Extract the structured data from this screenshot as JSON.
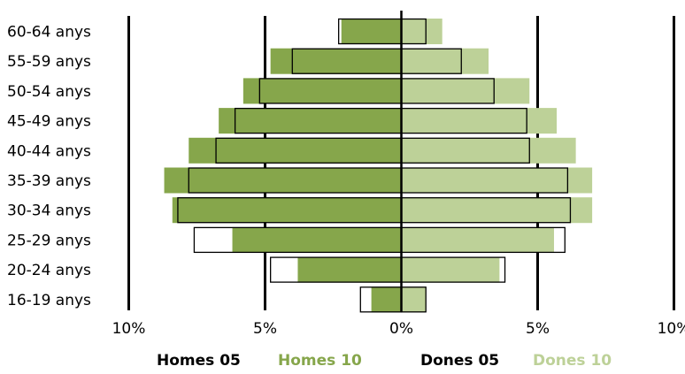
{
  "chart_data": {
    "type": "bar",
    "orientation": "horizontal",
    "layout": "population-pyramid",
    "categories": [
      "60-64 anys",
      "55-59 anys",
      "50-54 anys",
      "45-49 anys",
      "40-44 anys",
      "35-39 anys",
      "30-34 anys",
      "25-29 anys",
      "20-24 anys",
      "16-19 anys"
    ],
    "series": [
      {
        "name": "Homes 05",
        "side": "left",
        "style": "outline",
        "color": "#000000",
        "values": [
          2.3,
          4.0,
          5.2,
          6.1,
          6.8,
          7.8,
          8.2,
          7.6,
          4.8,
          1.5
        ]
      },
      {
        "name": "Homes 10",
        "side": "left",
        "style": "filled",
        "color": "#86a64b",
        "values": [
          2.2,
          4.8,
          5.8,
          6.7,
          7.8,
          8.7,
          8.4,
          6.2,
          3.8,
          1.1
        ]
      },
      {
        "name": "Dones 05",
        "side": "right",
        "style": "outline",
        "color": "#000000",
        "values": [
          0.9,
          2.2,
          3.4,
          4.6,
          4.7,
          6.1,
          6.2,
          6.0,
          3.8,
          0.9
        ]
      },
      {
        "name": "Dones 10",
        "side": "right",
        "style": "filled",
        "color": "#bdd198",
        "values": [
          1.5,
          3.2,
          4.7,
          5.7,
          6.4,
          7.0,
          7.0,
          5.6,
          3.6,
          0.9
        ]
      }
    ],
    "xticks": [
      "10%",
      "5%",
      "0%",
      "5%",
      "10%"
    ],
    "xlim": [
      -10,
      10
    ],
    "grid": true,
    "legend_position": "bottom"
  }
}
